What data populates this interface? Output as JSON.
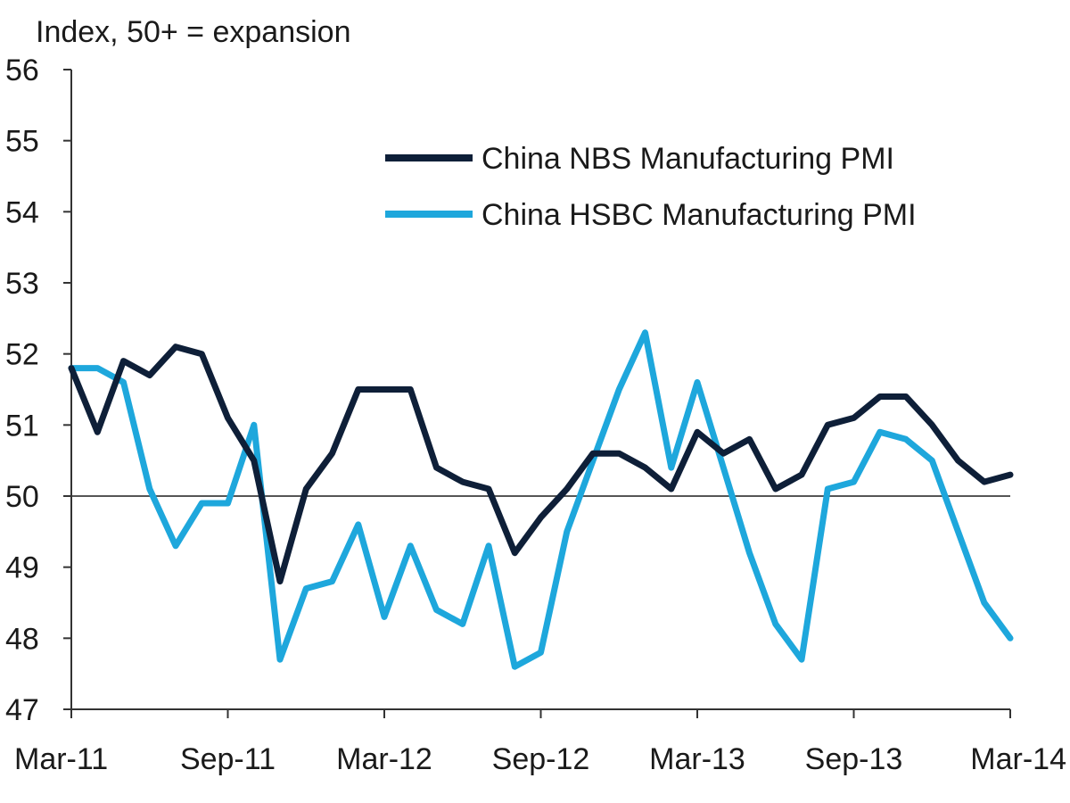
{
  "chart_data": {
    "type": "line",
    "ylabel": "Index, 50+ = expansion",
    "ylim": [
      47,
      56
    ],
    "yticks": [
      "47",
      "48",
      "49",
      "50",
      "51",
      "52",
      "53",
      "54",
      "55",
      "56"
    ],
    "reference_line": 50,
    "x": [
      "Mar-11",
      "Apr-11",
      "May-11",
      "Jun-11",
      "Jul-11",
      "Aug-11",
      "Sep-11",
      "Oct-11",
      "Nov-11",
      "Dec-11",
      "Jan-12",
      "Feb-12",
      "Mar-12",
      "Apr-12",
      "May-12",
      "Jun-12",
      "Jul-12",
      "Aug-12",
      "Sep-12",
      "Oct-12",
      "Nov-12",
      "Dec-12",
      "Jan-13",
      "Feb-13",
      "Mar-13",
      "Apr-13",
      "May-13",
      "Jun-13",
      "Jul-13",
      "Aug-13",
      "Sep-13",
      "Oct-13",
      "Nov-13",
      "Dec-13",
      "Jan-14",
      "Feb-14",
      "Mar-14"
    ],
    "xticks": [
      "Mar-11",
      "Sep-11",
      "Mar-12",
      "Sep-12",
      "Mar-13",
      "Sep-13",
      "Mar-14"
    ],
    "legend_position": "top-right",
    "series": [
      {
        "name": "China NBS Manufacturing PMI",
        "color": "#0e1f38",
        "values": [
          51.8,
          50.9,
          51.9,
          51.7,
          52.1,
          52.0,
          51.1,
          50.5,
          48.8,
          50.1,
          50.6,
          51.5,
          51.5,
          51.5,
          50.4,
          50.2,
          50.1,
          49.2,
          49.7,
          50.1,
          50.6,
          50.6,
          50.4,
          50.1,
          50.9,
          50.6,
          50.8,
          50.1,
          50.3,
          51.0,
          51.1,
          51.4,
          51.4,
          51.0,
          50.5,
          50.2,
          50.3
        ]
      },
      {
        "name": "China HSBC Manufacturing PMI",
        "color": "#1ea7dc",
        "values": [
          51.8,
          51.8,
          51.6,
          50.1,
          49.3,
          49.9,
          49.9,
          51.0,
          47.7,
          48.7,
          48.8,
          49.6,
          48.3,
          49.3,
          48.4,
          48.2,
          49.3,
          47.6,
          47.8,
          49.5,
          50.5,
          51.5,
          52.3,
          50.4,
          51.6,
          50.4,
          49.2,
          48.2,
          47.7,
          50.1,
          50.2,
          50.9,
          50.8,
          50.5,
          49.5,
          48.5,
          48.0
        ]
      }
    ]
  }
}
